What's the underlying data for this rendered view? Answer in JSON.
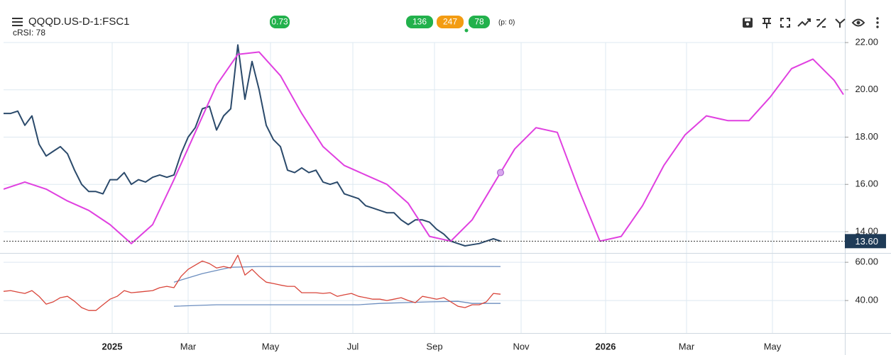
{
  "header": {
    "title": "QQQD.US-D-1:FSC1",
    "subtitle": "cRSI: 78",
    "badges": [
      {
        "text": "0.73",
        "color": "#22b14c"
      },
      {
        "text": "136",
        "color": "#22b14c"
      },
      {
        "text": "247",
        "color": "#f39c12"
      },
      {
        "text": "78",
        "color": "#22b14c"
      }
    ],
    "note": "(p: 0)"
  },
  "chart_data": [
    {
      "type": "line",
      "xlim": [
        0,
        118.5
      ],
      "ylim": [
        13.1,
        23.8
      ],
      "yticks": [
        {
          "value": 14,
          "label": "14.00"
        },
        {
          "value": 16,
          "label": "16.00"
        },
        {
          "value": 18,
          "label": "18.00"
        },
        {
          "value": 20,
          "label": "20.00"
        },
        {
          "value": 22,
          "label": "22.00"
        }
      ],
      "grid": true,
      "current": {
        "value": 13.6,
        "label": "13.60"
      },
      "series": [
        {
          "color": "#2b4a6b",
          "x": [
            0,
            1,
            2,
            3,
            4,
            5,
            6,
            7,
            8,
            9,
            10,
            11,
            12,
            13,
            14,
            15,
            16,
            17,
            18,
            19,
            20,
            21,
            22,
            23,
            24,
            25,
            26,
            27,
            28,
            29,
            30,
            31,
            32,
            33,
            34,
            35,
            36,
            37,
            38,
            39,
            40,
            41,
            42,
            43,
            44,
            45,
            46,
            47,
            48,
            49,
            50,
            51,
            52,
            53,
            54,
            55,
            56,
            57,
            58,
            59,
            60,
            61,
            62,
            63,
            64,
            65,
            66,
            67,
            68,
            69,
            70
          ],
          "values": [
            19.0,
            19.0,
            19.1,
            18.5,
            18.9,
            17.7,
            17.2,
            17.4,
            17.6,
            17.3,
            16.6,
            16.0,
            15.7,
            15.7,
            15.6,
            16.2,
            16.2,
            16.5,
            16.0,
            16.2,
            16.1,
            16.3,
            16.4,
            16.3,
            16.4,
            17.3,
            18.0,
            18.4,
            19.2,
            19.3,
            18.3,
            18.9,
            19.2,
            21.9,
            19.6,
            21.2,
            20.0,
            18.5,
            17.9,
            17.6,
            16.6,
            16.5,
            16.7,
            16.5,
            16.6,
            16.1,
            16.0,
            16.1,
            15.6,
            15.5,
            15.4,
            15.1,
            15.0,
            14.9,
            14.8,
            14.8,
            14.5,
            14.3,
            14.5,
            14.5,
            14.4,
            14.1,
            13.9,
            13.6,
            13.5,
            13.4,
            13.45,
            13.5,
            13.6,
            13.7,
            13.6
          ]
        },
        {
          "color": "#e040e0",
          "x": [
            0,
            3,
            6,
            9,
            12,
            15,
            18,
            21,
            24,
            27,
            30,
            33,
            36,
            39,
            42,
            45,
            48,
            51,
            54,
            57,
            60,
            63,
            66,
            69,
            72,
            75,
            78,
            81,
            84,
            87,
            90,
            93,
            96,
            99,
            102,
            105,
            108,
            111,
            114,
            117,
            118.3
          ],
          "values": [
            15.8,
            16.1,
            15.8,
            15.3,
            14.9,
            14.3,
            13.5,
            14.3,
            16.2,
            18.2,
            20.2,
            21.5,
            21.6,
            20.6,
            19.0,
            17.6,
            16.8,
            16.4,
            16.0,
            15.2,
            13.8,
            13.6,
            14.5,
            16.0,
            17.5,
            18.4,
            18.2,
            15.8,
            13.6,
            13.8,
            15.1,
            16.8,
            18.1,
            18.9,
            18.7,
            18.7,
            19.7,
            20.9,
            21.3,
            20.4,
            19.8
          ],
          "marker": {
            "x": 70,
            "value": 16.5
          }
        }
      ]
    },
    {
      "type": "line",
      "xlim": [
        0,
        118.5
      ],
      "ylim": [
        23,
        64.5
      ],
      "yticks": [
        {
          "value": 60,
          "label": "60.00"
        },
        {
          "value": 40,
          "label": "40.00"
        }
      ],
      "xticks": [
        {
          "value": 15.3,
          "label": "2025"
        },
        {
          "value": 26.0,
          "label": "Mar"
        },
        {
          "value": 37.6,
          "label": "May"
        },
        {
          "value": 49.2,
          "label": "Jul"
        },
        {
          "value": 60.7,
          "label": "Sep"
        },
        {
          "value": 72.9,
          "label": "Nov"
        },
        {
          "value": 84.8,
          "label": "2026"
        },
        {
          "value": 96.2,
          "label": "Mar"
        },
        {
          "value": 108.3,
          "label": "May"
        }
      ],
      "grid": true,
      "series": [
        {
          "color": "#6c8ebf",
          "x": [
            24,
            28,
            32,
            36,
            40,
            50,
            60,
            70
          ],
          "values": [
            49.6,
            54.1,
            57.4,
            57.8,
            57.8,
            57.8,
            57.9,
            57.8
          ]
        },
        {
          "color": "#6c8ebf",
          "x": [
            24,
            30,
            40,
            50,
            53,
            60,
            64,
            66,
            70
          ],
          "values": [
            37.0,
            37.8,
            37.8,
            37.8,
            38.5,
            39.3,
            39.6,
            38.5,
            38.5
          ]
        },
        {
          "color": "#d9453a",
          "x": [
            0,
            1,
            2,
            3,
            4,
            5,
            6,
            7,
            8,
            9,
            10,
            11,
            12,
            13,
            14,
            15,
            16,
            17,
            18,
            19,
            20,
            21,
            22,
            23,
            24,
            25,
            26,
            27,
            28,
            29,
            30,
            31,
            32,
            33,
            34,
            35,
            36,
            37,
            38,
            39,
            40,
            41,
            42,
            43,
            44,
            45,
            46,
            47,
            48,
            49,
            50,
            51,
            52,
            53,
            54,
            55,
            56,
            57,
            58,
            59,
            60,
            61,
            62,
            63,
            64,
            65,
            66,
            67,
            68,
            69,
            70
          ],
          "values": [
            44.8,
            45.2,
            44.4,
            43.7,
            45.2,
            42.2,
            38.1,
            39.3,
            41.5,
            42.2,
            39.6,
            36.3,
            34.8,
            34.8,
            37.8,
            40.7,
            42.2,
            45.2,
            44.1,
            44.4,
            44.8,
            45.2,
            46.7,
            47.4,
            46.7,
            52.6,
            56.3,
            58.5,
            60.7,
            59.3,
            57.0,
            57.8,
            57.0,
            63.7,
            53.3,
            56.3,
            52.6,
            49.6,
            48.9,
            48.1,
            47.4,
            47.4,
            44.1,
            44.1,
            44.1,
            43.7,
            44.1,
            42.2,
            43.0,
            43.7,
            42.2,
            41.5,
            40.7,
            40.7,
            40.0,
            40.7,
            41.5,
            40.0,
            38.9,
            42.2,
            41.5,
            40.7,
            41.5,
            39.3,
            37.0,
            36.3,
            37.8,
            37.8,
            39.3,
            43.7,
            43.3
          ]
        }
      ]
    }
  ]
}
